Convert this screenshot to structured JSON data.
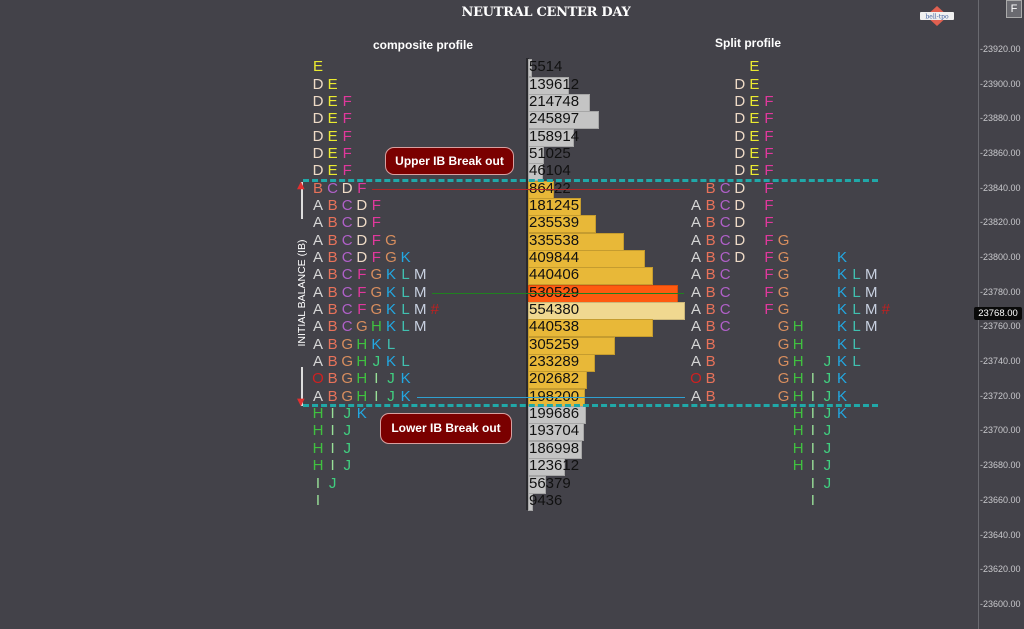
{
  "title": "NEUTRAL CENTER DAY",
  "logo_text": "bell-tpo",
  "corner_button": "F",
  "labels": {
    "composite": "composite profile",
    "split": "Split profile",
    "upper_ib": "Upper IB Break out",
    "lower_ib": "Lower IB Break out",
    "initial_balance": "INITIAL BALANCE (IB)"
  },
  "colors": {
    "A": "#d6d6d6",
    "B": "#e8725a",
    "C": "#b060c8",
    "D": "#eedac6",
    "E": "#eaea30",
    "F": "#e0389c",
    "G": "#d88e5e",
    "H": "#40c040",
    "I": "#98e098",
    "J": "#40d080",
    "K": "#22a8e2",
    "L": "#40c0b0",
    "M": "#c8d0e0",
    "O": "#d02020",
    "#": "#c02020",
    "ib_line": "#20a8a8",
    "poc": "#ff5a10",
    "vol_gray": "#c4c4c4",
    "vol_gold": "#e8b838",
    "vol_max": "#f0d890"
  },
  "chart_data": {
    "type": "table",
    "title": "NEUTRAL CENTER DAY",
    "price_step": 10,
    "ylim": [
      23600,
      23920
    ],
    "y_ticks": [
      "23920.00",
      "23900.00",
      "23880.00",
      "23860.00",
      "23840.00",
      "23820.00",
      "23800.00",
      "23780.00",
      "23760.00",
      "23740.00",
      "23720.00",
      "23700.00",
      "23680.00",
      "23660.00",
      "23640.00",
      "23620.00",
      "23600.00"
    ],
    "current_price": "23768.00",
    "ib_high": 23845,
    "ib_low": 23715,
    "composite_rows": [
      {
        "price": 23910,
        "tpo": "E",
        "volume": "5514"
      },
      {
        "price": 23900,
        "tpo": "DE",
        "volume": "139612"
      },
      {
        "price": 23890,
        "tpo": "DEF",
        "volume": "214748"
      },
      {
        "price": 23880,
        "tpo": "DEF",
        "volume": "245897"
      },
      {
        "price": 23870,
        "tpo": "DEF",
        "volume": "158914"
      },
      {
        "price": 23860,
        "tpo": "DEF",
        "volume": "51025"
      },
      {
        "price": 23850,
        "tpo": "DEF",
        "volume": "46104"
      },
      {
        "price": 23840,
        "tpo": "BCDF",
        "volume": "86422"
      },
      {
        "price": 23830,
        "tpo": "ABCDF",
        "volume": "181245"
      },
      {
        "price": 23820,
        "tpo": "ABCDF",
        "volume": "235539"
      },
      {
        "price": 23810,
        "tpo": "ABCDFG",
        "volume": "335538"
      },
      {
        "price": 23800,
        "tpo": "ABCDFGK",
        "volume": "409844"
      },
      {
        "price": 23790,
        "tpo": "ABCFGKLM",
        "volume": "440406"
      },
      {
        "price": 23780,
        "tpo": "ABCFGKLM",
        "volume": "530529",
        "poc": true
      },
      {
        "price": 23770,
        "tpo": "ABCFGKLM#",
        "volume": "554380"
      },
      {
        "price": 23760,
        "tpo": "ABCGHKLM",
        "volume": "440538"
      },
      {
        "price": 23750,
        "tpo": "ABGHKL",
        "volume": "305259"
      },
      {
        "price": 23740,
        "tpo": "ABGHJKL",
        "volume": "233289"
      },
      {
        "price": 23730,
        "tpo": "OBGHIJK",
        "volume": "202682"
      },
      {
        "price": 23720,
        "tpo": "ABGHIJK",
        "volume": "198200"
      },
      {
        "price": 23710,
        "tpo": "HIJK",
        "volume": "199686"
      },
      {
        "price": 23700,
        "tpo": "HIJ",
        "volume": "193704"
      },
      {
        "price": 23690,
        "tpo": "HIJ",
        "volume": "186998"
      },
      {
        "price": 23680,
        "tpo": "HIJ",
        "volume": "123612"
      },
      {
        "price": 23670,
        "tpo": "IJ",
        "volume": "56379"
      },
      {
        "price": 23660,
        "tpo": "I",
        "volume": "9436"
      }
    ],
    "split_columns": [
      {
        "letter": "A",
        "from": 23830,
        "to": 23720,
        "special": {
          "23730": "O"
        }
      },
      {
        "letter": "B",
        "from": 23840,
        "to": 23720
      },
      {
        "letter": "C",
        "from": 23840,
        "to": 23760
      },
      {
        "letter": "D",
        "from": 23900,
        "to": 23800
      },
      {
        "letter": "E",
        "from": 23910,
        "to": 23850
      },
      {
        "letter": "F",
        "from": 23890,
        "to": 23770
      },
      {
        "letter": "G",
        "from": 23810,
        "to": 23720
      },
      {
        "letter": "H",
        "from": 23760,
        "to": 23680
      },
      {
        "letter": "I",
        "from": 23730,
        "to": 23660
      },
      {
        "letter": "J",
        "from": 23740,
        "to": 23670
      },
      {
        "letter": "K",
        "from": 23800,
        "to": 23710
      },
      {
        "letter": "L",
        "from": 23790,
        "to": 23740
      },
      {
        "letter": "M",
        "from": 23790,
        "to": 23760
      },
      {
        "letter": "#",
        "from": 23770,
        "to": 23770
      }
    ]
  }
}
